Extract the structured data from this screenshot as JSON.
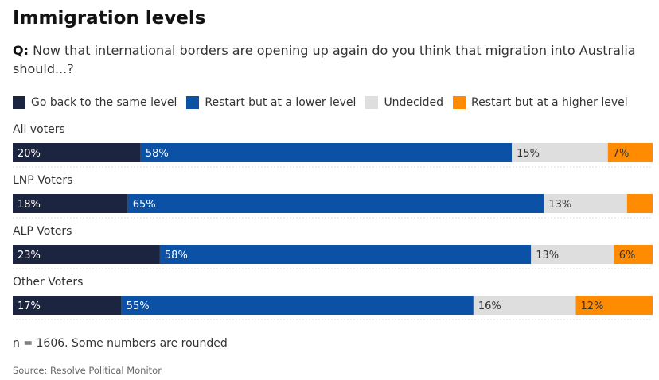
{
  "title": "Immigration levels",
  "question": {
    "prefix": "Q:",
    "text": "Now that international borders are opening up again do you think that migration into Australia should...?"
  },
  "footer": {
    "note": "n = 1606. Some numbers are rounded",
    "source": "Source: Resolve Political Monitor"
  },
  "chart_data": {
    "type": "bar",
    "orientation": "horizontal",
    "stacked": true,
    "legend_position": "top",
    "categories": [
      "All voters",
      "LNP Voters",
      "ALP Voters",
      "Other Voters"
    ],
    "series": [
      {
        "name": "Go back to the same level",
        "color": "#1b2540",
        "label_color": "#ffffff",
        "values": [
          20,
          18,
          23,
          17
        ],
        "labels": [
          "20%",
          "18%",
          "23%",
          "17%"
        ]
      },
      {
        "name": "Restart but at a lower level",
        "color": "#0b52a6",
        "label_color": "#ffffff",
        "values": [
          58,
          65,
          58,
          55
        ],
        "labels": [
          "58%",
          "65%",
          "58%",
          "55%"
        ]
      },
      {
        "name": "Undecided",
        "color": "#dedede",
        "label_color": "#333333",
        "values": [
          15,
          13,
          13,
          16
        ],
        "labels": [
          "15%",
          "13%",
          "13%",
          "16%"
        ]
      },
      {
        "name": "Restart but at a higher level",
        "color": "#ff8c00",
        "label_color": "#333333",
        "values": [
          7,
          4,
          6,
          12
        ],
        "labels": [
          "7%",
          "",
          "6%",
          "12%"
        ]
      }
    ]
  }
}
